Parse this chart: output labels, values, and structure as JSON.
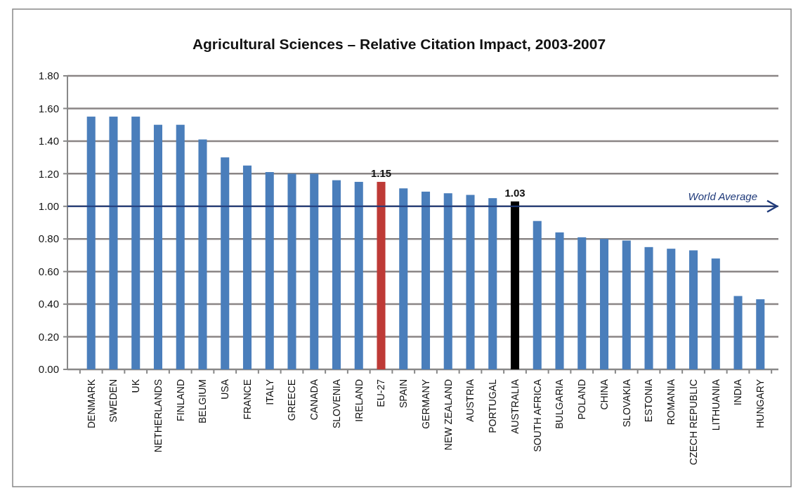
{
  "chart_data": {
    "type": "bar",
    "title": "Agricultural Sciences – Relative Citation Impact,  2003-2007",
    "categories": [
      "DENMARK",
      "SWEDEN",
      "UK",
      "NETHERLANDS",
      "FINLAND",
      "BELGIUM",
      "USA",
      "FRANCE",
      "ITALY",
      "GREECE",
      "CANADA",
      "SLOVENIA",
      "IRELAND",
      "EU-27",
      "SPAIN",
      "GERMANY",
      "NEW ZEALAND",
      "AUSTRIA",
      "PORTUGAL",
      "AUSTRALIA",
      "SOUTH AFRICA",
      "BULGARIA",
      "POLAND",
      "CHINA",
      "SLOVAKIA",
      "ESTONIA",
      "ROMANIA",
      "CZECH REPUBLIC",
      "LITHUANIA",
      "INDIA",
      "HUNGARY"
    ],
    "values": [
      1.55,
      1.55,
      1.55,
      1.5,
      1.5,
      1.41,
      1.3,
      1.25,
      1.21,
      1.2,
      1.2,
      1.16,
      1.15,
      1.15,
      1.11,
      1.09,
      1.08,
      1.07,
      1.05,
      1.03,
      0.91,
      0.84,
      0.81,
      0.8,
      0.79,
      0.75,
      0.74,
      0.73,
      0.68,
      0.45,
      0.43
    ],
    "colors": [
      "#4a7ebb",
      "#4a7ebb",
      "#4a7ebb",
      "#4a7ebb",
      "#4a7ebb",
      "#4a7ebb",
      "#4a7ebb",
      "#4a7ebb",
      "#4a7ebb",
      "#4a7ebb",
      "#4a7ebb",
      "#4a7ebb",
      "#4a7ebb",
      "#be3a36",
      "#4a7ebb",
      "#4a7ebb",
      "#4a7ebb",
      "#4a7ebb",
      "#4a7ebb",
      "#000000",
      "#4a7ebb",
      "#4a7ebb",
      "#4a7ebb",
      "#4a7ebb",
      "#4a7ebb",
      "#4a7ebb",
      "#4a7ebb",
      "#4a7ebb",
      "#4a7ebb",
      "#4a7ebb",
      "#4a7ebb"
    ],
    "value_labels": [
      null,
      null,
      null,
      null,
      null,
      null,
      null,
      null,
      null,
      null,
      null,
      null,
      null,
      "1.15",
      null,
      null,
      null,
      null,
      null,
      "1.03",
      null,
      null,
      null,
      null,
      null,
      null,
      null,
      null,
      null,
      null,
      null
    ],
    "ylim": [
      0,
      1.8
    ],
    "yticks": [
      {
        "value": 0,
        "label": "0.00"
      },
      {
        "value": 0.2,
        "label": "0.20"
      },
      {
        "value": 0.4,
        "label": "0.40"
      },
      {
        "value": 0.6,
        "label": "0.60"
      },
      {
        "value": 0.8,
        "label": "0.80"
      },
      {
        "value": 1,
        "label": "1.00"
      },
      {
        "value": 1.2,
        "label": "1.20"
      },
      {
        "value": 1.4,
        "label": "1.40"
      },
      {
        "value": 1.6,
        "label": "1.60"
      },
      {
        "value": 1.8,
        "label": "1.80"
      }
    ],
    "grid": "y",
    "ref_lines": [
      {
        "axis": "y",
        "value": 1,
        "label": "World Average",
        "color": "#1f3a7a"
      }
    ]
  }
}
